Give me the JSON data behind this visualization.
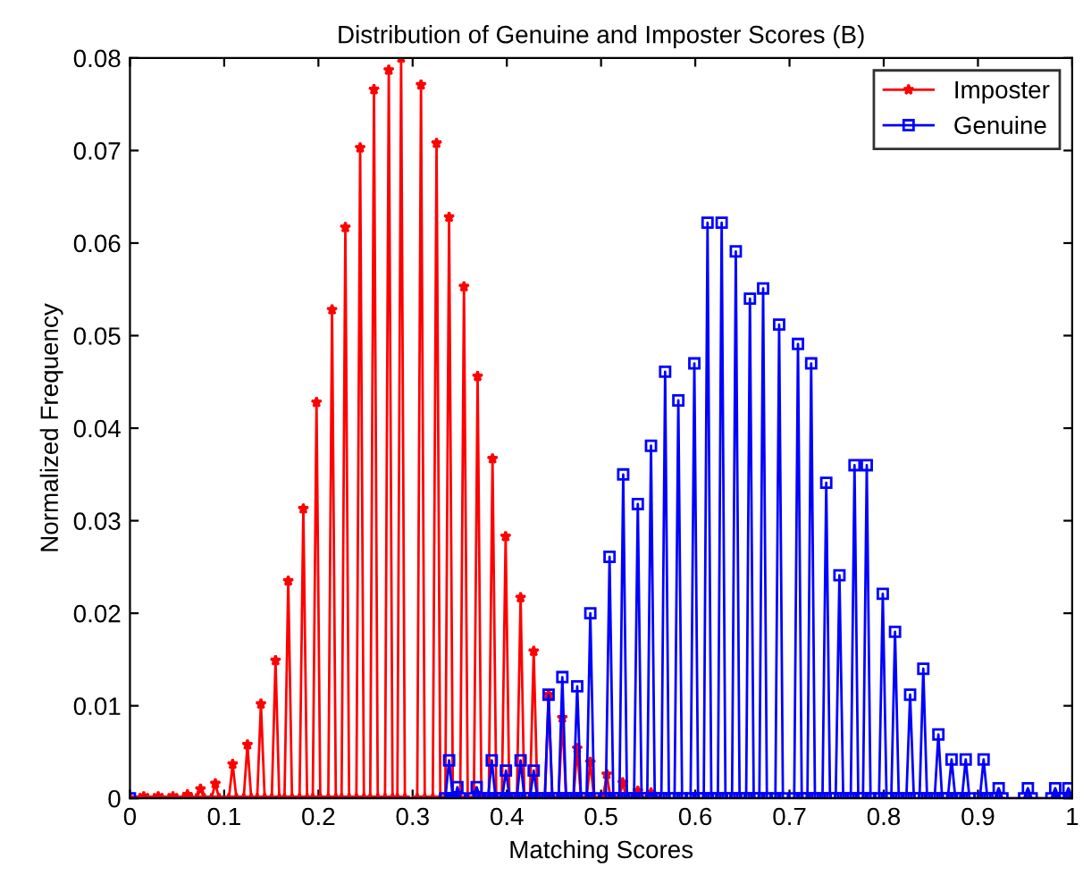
{
  "chart_data": {
    "type": "line",
    "title": "Distribution of Genuine and Imposter Scores (B)",
    "xlabel": "Matching Scores",
    "ylabel": "Normalized Frequency",
    "xlim": [
      0,
      1
    ],
    "xticks": [
      0,
      0.1,
      0.2,
      0.3,
      0.4,
      0.5,
      0.6,
      0.7,
      0.8,
      0.9,
      1
    ],
    "ylim": [
      0,
      0.08
    ],
    "yticks": [
      0,
      0.01,
      0.02,
      0.03,
      0.04,
      0.05,
      0.06,
      0.07,
      0.08
    ],
    "grid": false,
    "legend": "top right",
    "line_style": "solid",
    "series": [
      {
        "name": "Imposter",
        "color": "#ff0000",
        "marker": "star",
        "x": [
          0,
          0.0106,
          0.0146,
          0.0186,
          0.026,
          0.03,
          0.034,
          0.0416,
          0.0456,
          0.0496,
          0.057,
          0.061,
          0.065,
          0.0708,
          0.0748,
          0.0788,
          0.0866,
          0.0906,
          0.0946,
          0.105,
          0.109,
          0.113,
          0.1207,
          0.1247,
          0.1287,
          0.135,
          0.139,
          0.143,
          0.1505,
          0.1545,
          0.1585,
          0.164,
          0.168,
          0.172,
          0.18,
          0.184,
          0.188,
          0.194,
          0.198,
          0.202,
          0.2105,
          0.2145,
          0.2185,
          0.2246,
          0.2286,
          0.2326,
          0.2403,
          0.2443,
          0.2483,
          0.255,
          0.259,
          0.263,
          0.2707,
          0.2747,
          0.2787,
          0.2838,
          0.2878,
          0.2918,
          0.3049,
          0.3089,
          0.3129,
          0.3214,
          0.3254,
          0.3294,
          0.3347,
          0.3387,
          0.3427,
          0.3505,
          0.3545,
          0.3585,
          0.365,
          0.369,
          0.373,
          0.3808,
          0.3848,
          0.3888,
          0.3947,
          0.3987,
          0.4027,
          0.4106,
          0.4146,
          0.4186,
          0.4245,
          0.4285,
          0.4325,
          0.4403,
          0.4443,
          0.4483,
          0.4549,
          0.4589,
          0.4629,
          0.4707,
          0.4747,
          0.4787,
          0.4846,
          0.4886,
          0.4926,
          0.502,
          0.506,
          0.51,
          0.519,
          0.523,
          0.527,
          0.535,
          0.539,
          0.543,
          0.549,
          0.553,
          0.557,
          1
        ],
        "values": [
          0,
          0,
          0.0002,
          0,
          0,
          0.0002,
          0,
          0,
          0.0002,
          0,
          0,
          0.0004,
          0,
          0,
          0.001,
          0,
          0,
          0.0016,
          0,
          0,
          0.0037,
          0,
          0,
          0.0058,
          0,
          0,
          0.0102,
          0,
          0,
          0.0149,
          0,
          0,
          0.0235,
          0,
          0,
          0.0313,
          0,
          0,
          0.0428,
          0,
          0,
          0.0528,
          0,
          0,
          0.0617,
          0,
          0,
          0.0703,
          0,
          0,
          0.0766,
          0,
          0,
          0.0787,
          0,
          0,
          0.08,
          0,
          0,
          0.0771,
          0,
          0,
          0.0708,
          0,
          0,
          0.0628,
          0,
          0,
          0.0553,
          0,
          0,
          0.0456,
          0,
          0,
          0.0367,
          0,
          0,
          0.0283,
          0,
          0,
          0.0217,
          0,
          0,
          0.0159,
          0,
          0,
          0.0112,
          0,
          0,
          0.0087,
          0,
          0,
          0.0054,
          0,
          0,
          0.0039,
          0,
          0,
          0.0026,
          0,
          0,
          0.0017,
          0,
          0,
          0.0008,
          0,
          0,
          0.0006,
          0,
          0
        ]
      },
      {
        "name": "Genuine",
        "color": "#0000ff",
        "marker": "square",
        "x": [
          0,
          0.3347,
          0.3387,
          0.3427,
          0.3445,
          0.3475,
          0.3505,
          0.364,
          0.368,
          0.372,
          0.38,
          0.384,
          0.388,
          0.395,
          0.399,
          0.403,
          0.4106,
          0.4146,
          0.4186,
          0.4245,
          0.4285,
          0.4325,
          0.4403,
          0.4443,
          0.4483,
          0.4549,
          0.4589,
          0.4629,
          0.4707,
          0.4747,
          0.4787,
          0.4846,
          0.4886,
          0.4926,
          0.505,
          0.509,
          0.513,
          0.5195,
          0.5235,
          0.5275,
          0.535,
          0.539,
          0.543,
          0.549,
          0.553,
          0.557,
          0.564,
          0.568,
          0.572,
          0.578,
          0.582,
          0.586,
          0.595,
          0.599,
          0.603,
          0.609,
          0.613,
          0.617,
          0.624,
          0.628,
          0.632,
          0.639,
          0.643,
          0.647,
          0.654,
          0.658,
          0.662,
          0.668,
          0.672,
          0.676,
          0.685,
          0.689,
          0.693,
          0.705,
          0.709,
          0.713,
          0.719,
          0.723,
          0.727,
          0.735,
          0.739,
          0.743,
          0.749,
          0.753,
          0.757,
          0.765,
          0.769,
          0.773,
          0.778,
          0.782,
          0.786,
          0.795,
          0.799,
          0.803,
          0.808,
          0.812,
          0.816,
          0.824,
          0.828,
          0.832,
          0.838,
          0.842,
          0.846,
          0.854,
          0.858,
          0.862,
          0.868,
          0.872,
          0.876,
          0.883,
          0.887,
          0.891,
          0.902,
          0.906,
          0.91,
          0.918,
          0.922,
          0.926,
          0.949,
          0.953,
          0.957,
          0.978,
          0.982,
          0.986,
          0.992,
          0.996,
          1
        ],
        "values": [
          0,
          0,
          0.0041,
          0,
          0,
          0.0012,
          0,
          0,
          0.0012,
          0,
          0,
          0.0041,
          0,
          0,
          0.003,
          0,
          0,
          0.0041,
          0,
          0,
          0.003,
          0,
          0,
          0.0112,
          0,
          0,
          0.0131,
          0,
          0,
          0.0121,
          0,
          0,
          0.02,
          0,
          0,
          0.0261,
          0,
          0,
          0.035,
          0,
          0,
          0.0318,
          0,
          0,
          0.0381,
          0,
          0,
          0.0461,
          0,
          0,
          0.043,
          0,
          0,
          0.047,
          0,
          0,
          0.0622,
          0,
          0,
          0.0622,
          0,
          0,
          0.0591,
          0,
          0,
          0.054,
          0,
          0,
          0.0551,
          0,
          0,
          0.0512,
          0,
          0,
          0.0491,
          0,
          0,
          0.047,
          0,
          0,
          0.0341,
          0,
          0,
          0.0241,
          0,
          0,
          0.036,
          0,
          0,
          0.036,
          0,
          0,
          0.0221,
          0,
          0,
          0.018,
          0,
          0,
          0.0112,
          0,
          0,
          0.014,
          0,
          0,
          0.0069,
          0,
          0,
          0.0042,
          0,
          0,
          0.0042,
          0,
          0,
          0.0042,
          0,
          0,
          0.0011,
          0,
          0,
          0.0011,
          0,
          0,
          0.0011,
          0,
          0,
          0.0011,
          0
        ]
      }
    ]
  }
}
